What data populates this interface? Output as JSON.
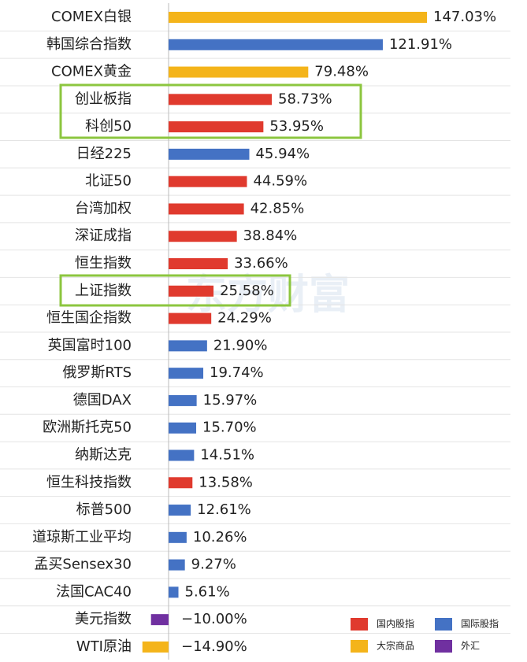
{
  "chart_data": {
    "type": "bar",
    "orientation": "horizontal",
    "watermark": "东方财富",
    "categories": [
      "COMEX白银",
      "韩国综合指数",
      "COMEX黄金",
      "创业板指",
      "科创50",
      "日经225",
      "北证50",
      "台湾加权",
      "深证成指",
      "恒生指数",
      "上证指数",
      "恒生国企指数",
      "英国富时100",
      "俄罗斯RTS",
      "德国DAX",
      "欧洲斯托克50",
      "纳斯达克",
      "恒生科技指数",
      "标普500",
      "道琼斯工业平均",
      "孟买Sensex30",
      "法国CAC40",
      "美元指数",
      "WTI原油"
    ],
    "values": [
      147.03,
      121.91,
      79.48,
      58.73,
      53.95,
      45.94,
      44.59,
      42.85,
      38.84,
      33.66,
      25.58,
      24.29,
      21.9,
      19.74,
      15.97,
      15.7,
      14.51,
      13.58,
      12.61,
      10.26,
      9.27,
      5.61,
      -10.0,
      -14.9
    ],
    "value_labels": [
      "147.03%",
      "121.91%",
      "79.48%",
      "58.73%",
      "53.95%",
      "45.94%",
      "44.59%",
      "42.85%",
      "38.84%",
      "33.66%",
      "25.58%",
      "24.29%",
      "21.90%",
      "19.74%",
      "15.97%",
      "15.70%",
      "14.51%",
      "13.58%",
      "12.61%",
      "10.26%",
      "9.27%",
      "5.61%",
      "−10.00%",
      "−14.90%"
    ],
    "colors": [
      "#f4b41a",
      "#4472c4",
      "#f4b41a",
      "#e03a2e",
      "#e03a2e",
      "#4472c4",
      "#e03a2e",
      "#e03a2e",
      "#e03a2e",
      "#e03a2e",
      "#e03a2e",
      "#e03a2e",
      "#4472c4",
      "#4472c4",
      "#4472c4",
      "#4472c4",
      "#4472c4",
      "#e03a2e",
      "#4472c4",
      "#4472c4",
      "#4472c4",
      "#4472c4",
      "#7030a0",
      "#f4b41a"
    ],
    "legend": [
      {
        "name": "国内股指",
        "color": "#e03a2e"
      },
      {
        "name": "国际股指",
        "color": "#4472c4"
      },
      {
        "name": "大宗商品",
        "color": "#f4b41a"
      },
      {
        "name": "外汇",
        "color": "#7030a0"
      }
    ]
  }
}
